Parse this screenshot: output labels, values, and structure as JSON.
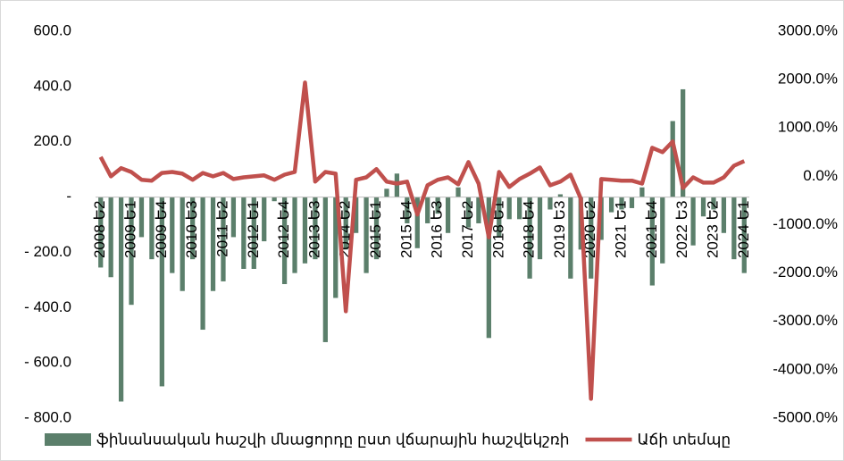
{
  "chart_data": {
    "type": "bar_line",
    "categories": [
      "2008 Ե2",
      null,
      null,
      "2009 Ե1",
      null,
      null,
      "2009 Ե4",
      null,
      null,
      "2010 Ե3",
      null,
      null,
      "2011 Ե2",
      null,
      null,
      "2012 Ե1",
      null,
      null,
      "2012 Ե4",
      null,
      null,
      "2013 Ե3",
      null,
      null,
      "2014 Ե2",
      null,
      null,
      "2015 Ե1",
      null,
      null,
      "2015 Ե4",
      null,
      null,
      "2016 Ե3",
      null,
      null,
      "2017 Ե2",
      null,
      null,
      "2018 Ե1",
      null,
      null,
      "2018 Ե4",
      null,
      null,
      "2019 Ե3",
      null,
      null,
      "2020 Ե2",
      null,
      null,
      "2021 Ե1",
      null,
      null,
      "2021 Ե4",
      null,
      null,
      "2022 Ե3",
      null,
      null,
      "2023 Ե2",
      null,
      null,
      "2024 Ե1"
    ],
    "series": [
      {
        "name": "ֆինանսական հաշվի մնացորդը ըստ  վճարային հաշվեկշռի",
        "color": "#5b7f6b",
        "kind": "bar",
        "values": [
          -255,
          -290,
          -740,
          -390,
          -145,
          -225,
          -685,
          -275,
          -340,
          -225,
          -480,
          -340,
          -305,
          -145,
          -260,
          -260,
          -160,
          -15,
          -315,
          -275,
          -240,
          -225,
          -525,
          -365,
          -190,
          -130,
          -275,
          -225,
          30,
          85,
          -95,
          -185,
          -95,
          -60,
          -130,
          35,
          -110,
          -95,
          -510,
          -145,
          -80,
          -80,
          -295,
          -225,
          -45,
          10,
          -295,
          -190,
          -295,
          -155,
          -55,
          -45,
          -40,
          35,
          -320,
          -240,
          275,
          390,
          -175,
          -70,
          -45,
          -130,
          -225,
          -275
        ]
      },
      {
        "name": "Աճի տեմպը",
        "color": "#c0504d",
        "kind": "line",
        "axis": "y2",
        "values": [
          400,
          0,
          170,
          90,
          -70,
          -90,
          70,
          90,
          55,
          -70,
          70,
          0,
          70,
          -55,
          -20,
          0,
          20,
          -70,
          35,
          90,
          1940,
          -110,
          90,
          55,
          -2790,
          -70,
          -20,
          150,
          -110,
          -150,
          -110,
          -790,
          -185,
          -70,
          -20,
          -165,
          295,
          -150,
          -1260,
          90,
          -220,
          -55,
          55,
          185,
          -185,
          -110,
          35,
          -460,
          -4600,
          -55,
          -70,
          -90,
          -90,
          -150,
          590,
          500,
          720,
          -240,
          -20,
          -130,
          -130,
          -20,
          220,
          315
        ]
      }
    ],
    "ylim": [
      -800,
      600
    ],
    "yticks": [
      {
        "value": 600,
        "label": "600.0"
      },
      {
        "value": 400,
        "label": "400.0"
      },
      {
        "value": 200,
        "label": "200.0"
      },
      {
        "value": 0,
        "label": "-"
      },
      {
        "value": -200,
        "label": "- 200.0"
      },
      {
        "value": -400,
        "label": "- 400.0"
      },
      {
        "value": -600,
        "label": "- 600.0"
      },
      {
        "value": -800,
        "label": "- 800.0"
      }
    ],
    "y2lim": [
      -5000,
      3000
    ],
    "y2ticks": [
      {
        "value": 3000,
        "label": "3000.0%"
      },
      {
        "value": 2000,
        "label": "2000.0%"
      },
      {
        "value": 1000,
        "label": "1000.0%"
      },
      {
        "value": 0,
        "label": "0.0%"
      },
      {
        "value": -1000,
        "label": "-1000.0%"
      },
      {
        "value": -2000,
        "label": "-2000.0%"
      },
      {
        "value": -3000,
        "label": "-3000.0%"
      },
      {
        "value": -4000,
        "label": "-4000.0%"
      },
      {
        "value": -5000,
        "label": "-5000.0%"
      }
    ],
    "legend": "bottom",
    "grid": false
  }
}
